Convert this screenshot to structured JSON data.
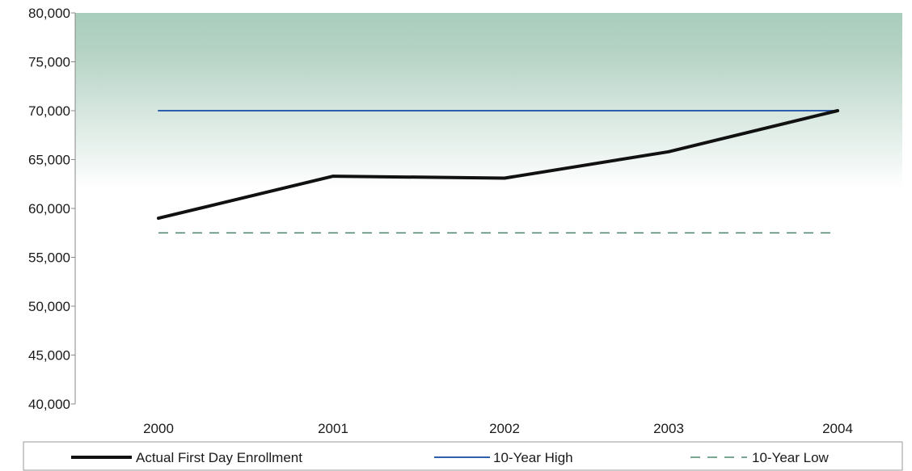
{
  "chart_data": {
    "type": "line",
    "title": "",
    "xlabel": "",
    "ylabel": "",
    "categories": [
      "2000",
      "2001",
      "2002",
      "2003",
      "2004"
    ],
    "ylim": [
      40000,
      80000
    ],
    "yticks": [
      40000,
      45000,
      50000,
      55000,
      60000,
      65000,
      70000,
      75000,
      80000
    ],
    "ytick_labels": [
      "40,000",
      "45,000",
      "50,000",
      "55,000",
      "60,000",
      "65,000",
      "70,000",
      "75,000",
      "80,000"
    ],
    "grid": false,
    "legend_position": "bottom",
    "series": [
      {
        "name": "Actual First Day Enrollment",
        "values": [
          59000,
          63300,
          63100,
          65800,
          70000
        ],
        "color": "#111111",
        "style": "solid-thick"
      },
      {
        "name": "10-Year High",
        "values": [
          70000,
          70000,
          70000,
          70000,
          70000
        ],
        "color": "#2e5fae",
        "style": "solid"
      },
      {
        "name": "10-Year Low",
        "values": [
          57500,
          57500,
          57500,
          57500,
          57500
        ],
        "color": "#4f8a6e",
        "style": "dashed"
      }
    ],
    "plot_background": {
      "top_color": "#a9cdbd",
      "bottom_color": "#ffffff"
    }
  }
}
